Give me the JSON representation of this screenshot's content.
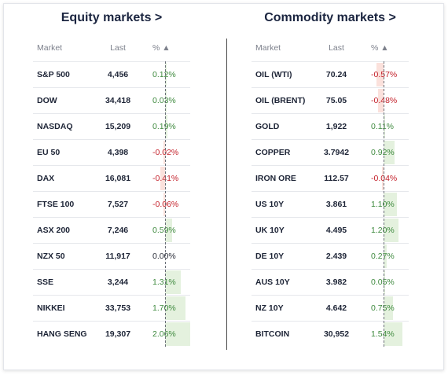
{
  "equity": {
    "title": "Equity markets >",
    "headers": {
      "market": "Market",
      "last": "Last",
      "pct": "% ▲"
    },
    "rows": [
      {
        "market": "S&P 500",
        "last": "4,456",
        "pct": "0.12%",
        "value": 0.12
      },
      {
        "market": "DOW",
        "last": "34,418",
        "pct": "0.03%",
        "value": 0.03
      },
      {
        "market": "NASDAQ",
        "last": "15,209",
        "pct": "0.19%",
        "value": 0.19
      },
      {
        "market": "EU 50",
        "last": "4,398",
        "pct": "-0.02%",
        "value": -0.02
      },
      {
        "market": "DAX",
        "last": "16,081",
        "pct": "-0.41%",
        "value": -0.41
      },
      {
        "market": "FTSE 100",
        "last": "7,527",
        "pct": "-0.06%",
        "value": -0.06
      },
      {
        "market": "ASX 200",
        "last": "7,246",
        "pct": "0.59%",
        "value": 0.59
      },
      {
        "market": "NZX 50",
        "last": "11,917",
        "pct": "0.00%",
        "value": 0.0
      },
      {
        "market": "SSE",
        "last": "3,244",
        "pct": "1.31%",
        "value": 1.31
      },
      {
        "market": "NIKKEI",
        "last": "33,753",
        "pct": "1.70%",
        "value": 1.7
      },
      {
        "market": "HANG SENG",
        "last": "19,307",
        "pct": "2.06%",
        "value": 2.06
      }
    ]
  },
  "commodity": {
    "title": "Commodity markets >",
    "headers": {
      "market": "Market",
      "last": "Last",
      "pct": "% ▲"
    },
    "rows": [
      {
        "market": "OIL (WTI)",
        "last": "70.24",
        "pct": "-0.57%",
        "value": -0.57
      },
      {
        "market": "OIL (BRENT)",
        "last": "75.05",
        "pct": "-0.48%",
        "value": -0.48
      },
      {
        "market": "GOLD",
        "last": "1,922",
        "pct": "0.11%",
        "value": 0.11
      },
      {
        "market": "COPPER",
        "last": "3.7942",
        "pct": "0.92%",
        "value": 0.92
      },
      {
        "market": "IRON ORE",
        "last": "112.57",
        "pct": "-0.04%",
        "value": -0.04
      },
      {
        "market": "US 10Y",
        "last": "3.861",
        "pct": "1.10%",
        "value": 1.1
      },
      {
        "market": "UK 10Y",
        "last": "4.495",
        "pct": "1.20%",
        "value": 1.2
      },
      {
        "market": "DE 10Y",
        "last": "2.439",
        "pct": "0.27%",
        "value": 0.27
      },
      {
        "market": "AUS 10Y",
        "last": "3.982",
        "pct": "0.05%",
        "value": 0.05
      },
      {
        "market": "NZ 10Y",
        "last": "4.642",
        "pct": "0.75%",
        "value": 0.75
      },
      {
        "market": "BITCOIN",
        "last": "30,952",
        "pct": "1.54%",
        "value": 1.54
      }
    ]
  },
  "colors": {
    "positive_text": "#3f8a3f",
    "negative_text": "#c4212b",
    "positive_bar": "#e4f1de",
    "negative_bar": "#fbe1dc"
  }
}
